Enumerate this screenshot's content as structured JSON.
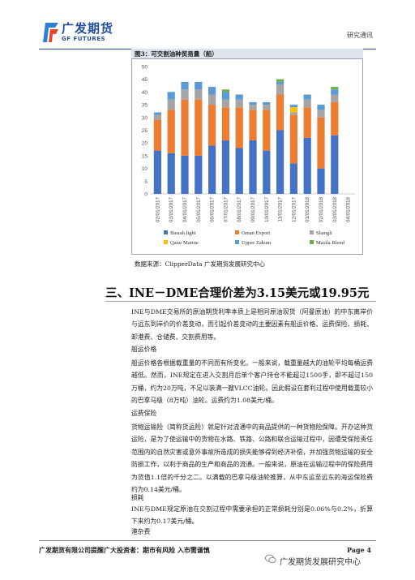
{
  "header": {
    "logo_cn": "广发期货",
    "logo_en": "GF FUTURES",
    "report_type": "研究通讯"
  },
  "figure": {
    "title": "图3：可交割油种贸易量（船）",
    "source": "数据来源：ClipperData  广发期货发展研究中心"
  },
  "chart_data": {
    "type": "bar",
    "stacked": true,
    "categories": [
      "02/01/2017",
      "03/01/2017",
      "04/01/2017",
      "05/01/2017",
      "06/01/2017",
      "07/01/2017",
      "08/01/2017",
      "09/01/2017",
      "10/01/2017",
      "11/01/2017",
      "12/01/2017",
      "01/01/2018",
      "02/01/2018",
      "03/01/2018",
      "04/01/2018"
    ],
    "ylim": [
      0,
      50
    ],
    "yticks": [
      0,
      5,
      10,
      15,
      20,
      25,
      30,
      35,
      40,
      45,
      50
    ],
    "series": [
      {
        "name": "Basrah light",
        "color": "#4472c4",
        "values": [
          17,
          16,
          15,
          15,
          19,
          21,
          18,
          21,
          17,
          25,
          12,
          22,
          10,
          23,
          0
        ]
      },
      {
        "name": "Oman Export",
        "color": "#ed7d31",
        "values": [
          12,
          17,
          22,
          22,
          16,
          13,
          16,
          12,
          16,
          14,
          19,
          12,
          20,
          13,
          0
        ]
      },
      {
        "name": "Shangli",
        "color": "#a5a5a5",
        "values": [
          2,
          4,
          4,
          4,
          4,
          3,
          3,
          2,
          2,
          4,
          1,
          3,
          3,
          3,
          0
        ]
      },
      {
        "name": "Qatar Marine",
        "color": "#ffc000",
        "values": [
          0,
          0,
          0,
          0,
          0,
          0,
          0,
          0,
          0,
          0,
          2,
          0,
          0,
          0,
          0
        ]
      },
      {
        "name": "Upper Zakum",
        "color": "#5b9bd5",
        "values": [
          1,
          3,
          3,
          3,
          3,
          3,
          2,
          1,
          1,
          1,
          1,
          2,
          2,
          2,
          0
        ]
      },
      {
        "name": "Masila Blend",
        "color": "#70ad47",
        "values": [
          0,
          0,
          0,
          0,
          0,
          1,
          0,
          0,
          0,
          1,
          0,
          0,
          0,
          1,
          0
        ]
      }
    ],
    "legend_position": "bottom"
  },
  "section": {
    "title": "三、INE－DME合理价差为3.15美元或19.95元"
  },
  "paragraphs": {
    "intro": "INE与DME交易所的原油期货利率本质上是相同原油现货（阿曼原油）的中东离岸价与远东到岸价的价差变动，而引起价差变动的主要因素有船运价格、运费保险、损耗、卸港费、仓储费、交割费用等。",
    "p1_heading": "船运价格",
    "p1": "船运价格各根据载重量的不同而有所变化，一般来说，载重量越大的油轮平均每桶运费越低。然而，INE规定在进入交割月后单个客户持仓不能超过1500手，即不超过150万桶，约为20万吨，不足以装满一艘VLCC油轮。因此假设在套利过程中使用载重较小的巴拿马级（8万吨）油轮。运费约为1.08美元/桶。",
    "p2_heading": "运费保险",
    "p2": "货物运输险（简称货运险）就是针对流通中的商品提供的一种货物险保障。开办这种货运险，是为了使运输中的货物在水路、铁路、公路和联合运输过程中，因遭受保险责任范围内的自然灾害或意外事故所造成的损失能够得到经济补偿，并加强货物运输的安全防损工作，以利于商品的生产和商品的流通。一般来说，原油在运输过程中的保险费用为货值1.1倍的千分之二。以满载的巴拿马级油轮推算，从中东运至远东的海运保险费约为0.14美元/桶。",
    "p3_heading": "损耗",
    "p3": "INE与DME规定原油在交割过程中需要承担的正常损耗分别是0.06%与0.2%，折算下来约为0.17美元/桶。",
    "p4_heading": "港杂费"
  },
  "footer": {
    "left": "广发期货有限公司提醒广大投资者：期市有风险 入市需谨慎",
    "right": "Page 4",
    "watermark": "广发期货发展研究中心"
  }
}
